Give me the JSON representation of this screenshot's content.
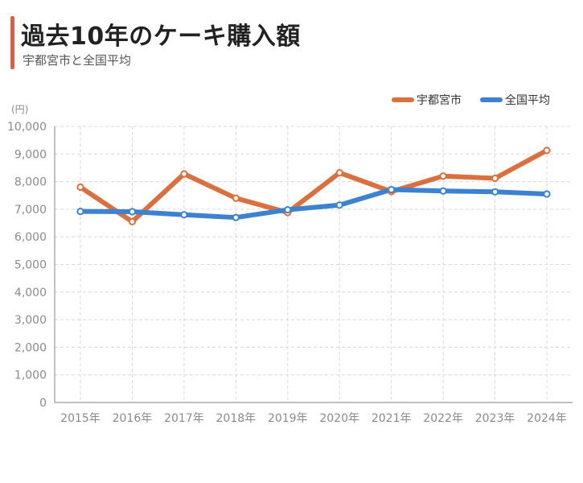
{
  "header": {
    "title": "過去10年のケーキ購入額",
    "subtitle": "宇都宮市と全国平均"
  },
  "colors": {
    "accent": "#e05a47",
    "utsunomiya": "#d9703f",
    "national": "#3d82d1",
    "grid": "#d8d8d8",
    "axis_text": "#8a8a8a"
  },
  "chart_data": {
    "type": "line",
    "title": "過去10年のケーキ購入額",
    "subtitle": "宇都宮市と全国平均",
    "unit": "(円)",
    "categories": [
      "2015年",
      "2016年",
      "2017年",
      "2018年",
      "2019年",
      "2020年",
      "2021年",
      "2022年",
      "2023年",
      "2024年"
    ],
    "ylim": [
      0,
      10000
    ],
    "yticks": [
      0,
      1000,
      2000,
      3000,
      4000,
      5000,
      6000,
      7000,
      8000,
      9000,
      10000
    ],
    "ytick_labels": [
      "0",
      "1,000",
      "2,000",
      "3,000",
      "4,000",
      "5,000",
      "6,000",
      "7,000",
      "8,000",
      "9,000",
      "10,000"
    ],
    "grid": true,
    "legend_position": "top-right",
    "series": [
      {
        "name": "宇都宮市",
        "color": "#d9703f",
        "values": [
          7800,
          6550,
          8280,
          7400,
          6880,
          8320,
          7640,
          8200,
          8120,
          9130
        ]
      },
      {
        "name": "全国平均",
        "color": "#3d82d1",
        "values": [
          6920,
          6910,
          6800,
          6700,
          6980,
          7150,
          7710,
          7660,
          7630,
          7550
        ]
      }
    ]
  }
}
